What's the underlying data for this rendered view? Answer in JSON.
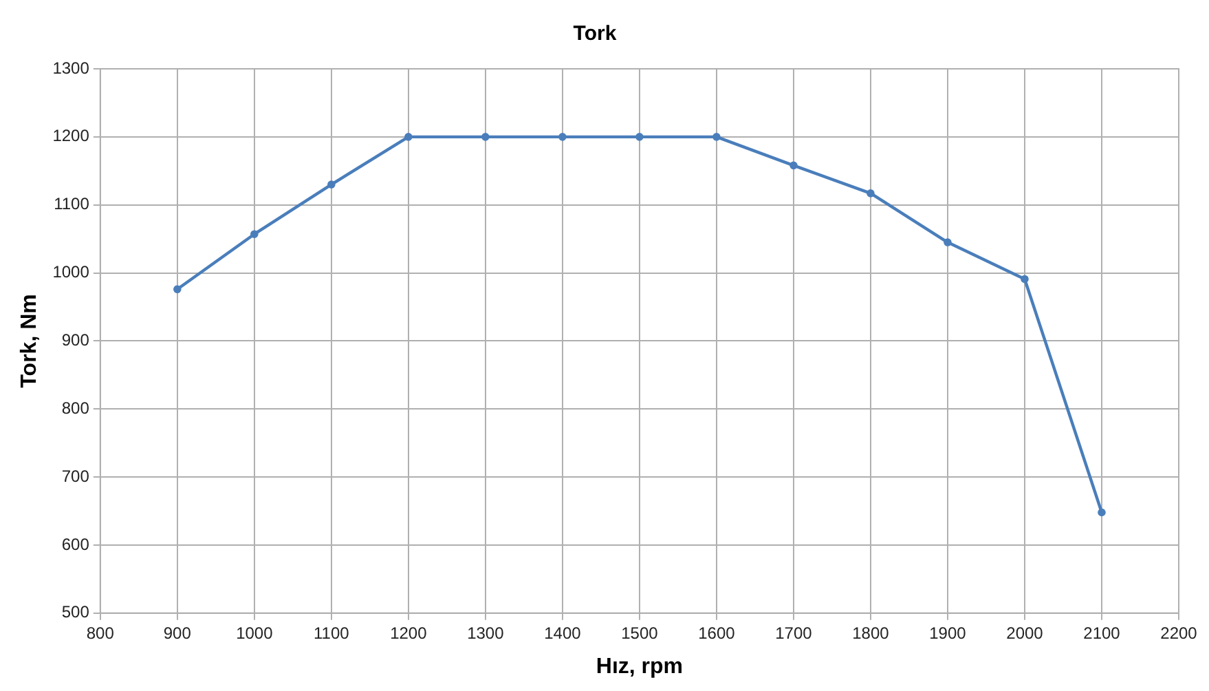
{
  "chart_data": {
    "type": "line",
    "title": "Tork",
    "xlabel": "Hız, rpm",
    "ylabel": "Tork, Nm",
    "x": [
      900,
      1000,
      1100,
      1200,
      1300,
      1400,
      1500,
      1600,
      1700,
      1800,
      1900,
      2000,
      2100
    ],
    "series": [
      {
        "color": "#4a7ebb",
        "values": [
          976,
          1057,
          1130,
          1200,
          1200,
          1200,
          1200,
          1200,
          1158,
          1117,
          1045,
          991,
          648
        ]
      }
    ],
    "xlim": [
      800,
      2200
    ],
    "xticks": [
      800,
      900,
      1000,
      1100,
      1200,
      1300,
      1400,
      1500,
      1600,
      1700,
      1800,
      1900,
      2000,
      2100,
      2200
    ],
    "ylim": [
      500,
      1300
    ],
    "yticks": [
      500,
      600,
      700,
      800,
      900,
      1000,
      1100,
      1200,
      1300
    ],
    "grid": true,
    "legend": false,
    "marker": "circle",
    "line_style": "solid"
  }
}
